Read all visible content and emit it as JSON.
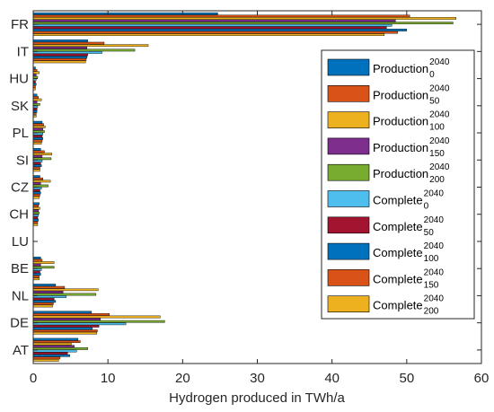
{
  "chart_data": {
    "type": "bar",
    "orientation": "horizontal",
    "categories": [
      "FR",
      "IT",
      "HU",
      "SK",
      "PL",
      "SI",
      "CZ",
      "CH",
      "LU",
      "BE",
      "NL",
      "DE",
      "AT"
    ],
    "xlabel": "Hydrogen produced in TWh/a",
    "xlim": [
      0,
      60
    ],
    "xticks": [
      "0",
      "10",
      "20",
      "30",
      "40",
      "50",
      "60"
    ],
    "grid": false,
    "legend_position": "right",
    "series": [
      {
        "name": "Production",
        "year": "2040",
        "scenario": "0",
        "color": "#0072BD",
        "values": [
          24.7,
          7.3,
          0.3,
          0.5,
          1.2,
          1.0,
          0.9,
          0.8,
          0.0,
          1.0,
          3.0,
          7.8,
          6.0
        ]
      },
      {
        "name": "Production",
        "year": "2040",
        "scenario": "50",
        "color": "#D95319",
        "values": [
          50.4,
          9.5,
          0.5,
          0.7,
          1.4,
          1.5,
          1.3,
          0.7,
          0.0,
          1.2,
          4.2,
          10.2,
          6.3
        ]
      },
      {
        "name": "Production",
        "year": "2040",
        "scenario": "100",
        "color": "#EDB120",
        "values": [
          56.6,
          15.4,
          0.8,
          1.1,
          1.6,
          2.5,
          2.3,
          0.9,
          0.0,
          2.8,
          8.7,
          17.0,
          5.1
        ]
      },
      {
        "name": "Production",
        "year": "2040",
        "scenario": "150",
        "color": "#7E2F8E",
        "values": [
          48.5,
          7.2,
          0.4,
          0.5,
          1.3,
          1.2,
          1.0,
          0.7,
          0.0,
          1.0,
          4.0,
          9.0,
          5.5
        ]
      },
      {
        "name": "Production",
        "year": "2040",
        "scenario": "200",
        "color": "#77AC30",
        "values": [
          56.2,
          13.6,
          0.6,
          0.9,
          1.5,
          2.4,
          2.0,
          0.8,
          0.0,
          2.8,
          8.4,
          17.6,
          7.3
        ]
      },
      {
        "name": "Complete",
        "year": "2040",
        "scenario": "0",
        "color": "#4DBEEE",
        "values": [
          48.0,
          9.2,
          0.4,
          0.6,
          1.3,
          1.2,
          1.1,
          0.7,
          0.0,
          1.1,
          4.4,
          12.4,
          5.8
        ]
      },
      {
        "name": "Complete",
        "year": "2040",
        "scenario": "50",
        "color": "#A2142F",
        "values": [
          47.3,
          7.3,
          0.3,
          0.5,
          1.2,
          1.0,
          0.9,
          0.6,
          0.0,
          0.9,
          2.8,
          8.8,
          4.6
        ]
      },
      {
        "name": "Complete",
        "year": "2040",
        "scenario": "100",
        "color": "#0072BD",
        "values": [
          50.0,
          7.2,
          0.4,
          0.5,
          1.3,
          1.1,
          1.0,
          0.7,
          0.0,
          1.0,
          3.0,
          7.9,
          4.9
        ]
      },
      {
        "name": "Complete",
        "year": "2040",
        "scenario": "150",
        "color": "#D95319",
        "values": [
          48.8,
          7.1,
          0.3,
          0.4,
          1.2,
          0.9,
          0.9,
          0.6,
          0.0,
          0.8,
          2.7,
          8.6,
          3.6
        ]
      },
      {
        "name": "Complete",
        "year": "2040",
        "scenario": "200",
        "color": "#EDB120",
        "values": [
          47.0,
          7.0,
          0.3,
          0.4,
          1.1,
          0.9,
          0.8,
          0.6,
          0.0,
          0.8,
          2.6,
          8.5,
          3.4
        ]
      }
    ]
  }
}
